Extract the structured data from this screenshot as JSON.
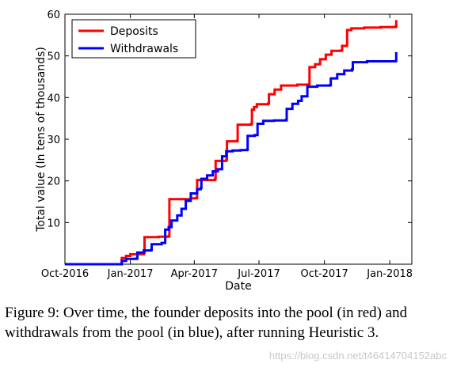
{
  "chart_data": {
    "type": "line",
    "xlabel": "Date",
    "ylabel": "Total value (In tens of thousands)",
    "x_axis": {
      "type": "date",
      "range": [
        "2016-10-01",
        "2018-02-01"
      ],
      "ticks": [
        {
          "date": "2016-10-01",
          "label": "Oct-2016"
        },
        {
          "date": "2017-01-01",
          "label": "Jan-2017"
        },
        {
          "date": "2017-04-01",
          "label": "Apr-2017"
        },
        {
          "date": "2017-07-01",
          "label": "Jul-2017"
        },
        {
          "date": "2017-10-01",
          "label": "Oct-2017"
        },
        {
          "date": "2018-01-01",
          "label": "Jan-2018"
        }
      ]
    },
    "ylim": [
      0,
      60
    ],
    "yticks": [
      10,
      20,
      30,
      40,
      50,
      60
    ],
    "grid": false,
    "legend": {
      "position": "top-left"
    },
    "series": [
      {
        "name": "Deposits",
        "color": "#ff0000",
        "step": true,
        "points": [
          [
            "2016-10-01",
            0
          ],
          [
            "2016-12-19",
            0
          ],
          [
            "2016-12-20",
            1.5
          ],
          [
            "2016-12-26",
            2.0
          ],
          [
            "2017-01-01",
            2.4
          ],
          [
            "2017-01-20",
            2.7
          ],
          [
            "2017-01-21",
            6.5
          ],
          [
            "2017-02-10",
            6.6
          ],
          [
            "2017-02-24",
            6.8
          ],
          [
            "2017-02-25",
            15.6
          ],
          [
            "2017-03-27",
            15.8
          ],
          [
            "2017-04-04",
            15.9
          ],
          [
            "2017-04-05",
            20.2
          ],
          [
            "2017-04-30",
            20.5
          ],
          [
            "2017-05-01",
            24.8
          ],
          [
            "2017-05-16",
            25.1
          ],
          [
            "2017-05-17",
            29.5
          ],
          [
            "2017-05-31",
            29.6
          ],
          [
            "2017-06-01",
            33.5
          ],
          [
            "2017-06-20",
            33.7
          ],
          [
            "2017-06-21",
            37.1
          ],
          [
            "2017-06-24",
            37.7
          ],
          [
            "2017-06-28",
            38.4
          ],
          [
            "2017-07-14",
            38.6
          ],
          [
            "2017-07-15",
            40.8
          ],
          [
            "2017-07-23",
            41.9
          ],
          [
            "2017-08-01",
            42.9
          ],
          [
            "2017-08-24",
            43.1
          ],
          [
            "2017-09-09",
            43.2
          ],
          [
            "2017-09-10",
            47.3
          ],
          [
            "2017-09-18",
            48.0
          ],
          [
            "2017-09-25",
            49.2
          ],
          [
            "2017-10-03",
            50.3
          ],
          [
            "2017-10-11",
            51.2
          ],
          [
            "2017-10-25",
            51.3
          ],
          [
            "2017-10-26",
            52.4
          ],
          [
            "2017-11-02",
            56.2
          ],
          [
            "2017-11-08",
            56.6
          ],
          [
            "2017-11-26",
            56.8
          ],
          [
            "2017-12-19",
            56.9
          ],
          [
            "2018-01-09",
            57.0
          ],
          [
            "2018-01-10",
            58.6
          ]
        ]
      },
      {
        "name": "Withdrawals",
        "color": "#0000ff",
        "step": true,
        "points": [
          [
            "2016-10-01",
            0
          ],
          [
            "2016-12-19",
            0
          ],
          [
            "2016-12-20",
            0.8
          ],
          [
            "2016-12-26",
            1.3
          ],
          [
            "2017-01-10",
            1.4
          ],
          [
            "2017-01-11",
            2.8
          ],
          [
            "2017-01-20",
            3.3
          ],
          [
            "2017-01-30",
            3.4
          ],
          [
            "2017-01-31",
            4.8
          ],
          [
            "2017-02-14",
            5.1
          ],
          [
            "2017-02-19",
            8.3
          ],
          [
            "2017-02-24",
            8.9
          ],
          [
            "2017-02-28",
            10.5
          ],
          [
            "2017-03-08",
            11.7
          ],
          [
            "2017-03-14",
            13.3
          ],
          [
            "2017-03-20",
            15.2
          ],
          [
            "2017-03-27",
            17.0
          ],
          [
            "2017-04-05",
            18.0
          ],
          [
            "2017-04-10",
            18.3
          ],
          [
            "2017-04-11",
            20.5
          ],
          [
            "2017-04-19",
            21.3
          ],
          [
            "2017-04-27",
            22.3
          ],
          [
            "2017-05-04",
            22.8
          ],
          [
            "2017-05-10",
            25.9
          ],
          [
            "2017-05-16",
            27.1
          ],
          [
            "2017-05-25",
            27.3
          ],
          [
            "2017-06-05",
            27.4
          ],
          [
            "2017-06-14",
            27.5
          ],
          [
            "2017-06-15",
            30.8
          ],
          [
            "2017-06-25",
            31.0
          ],
          [
            "2017-06-29",
            33.7
          ],
          [
            "2017-07-07",
            34.4
          ],
          [
            "2017-07-22",
            34.5
          ],
          [
            "2017-08-08",
            34.6
          ],
          [
            "2017-08-09",
            37.3
          ],
          [
            "2017-08-17",
            38.5
          ],
          [
            "2017-08-25",
            39.2
          ],
          [
            "2017-08-30",
            40.3
          ],
          [
            "2017-09-07",
            42.6
          ],
          [
            "2017-09-21",
            42.9
          ],
          [
            "2017-10-09",
            43.0
          ],
          [
            "2017-10-10",
            44.6
          ],
          [
            "2017-10-19",
            45.6
          ],
          [
            "2017-10-29",
            46.5
          ],
          [
            "2017-11-09",
            46.8
          ],
          [
            "2017-11-10",
            48.5
          ],
          [
            "2017-11-30",
            48.7
          ],
          [
            "2018-01-09",
            48.8
          ],
          [
            "2018-01-10",
            50.9
          ]
        ]
      }
    ]
  },
  "caption": "Figure 9: Over time, the founder deposits into the pool (in red) and withdrawals from the pool (in blue), after running Heuristic 3.",
  "watermark": "https://blog.csdn.net/t46414704152abc"
}
